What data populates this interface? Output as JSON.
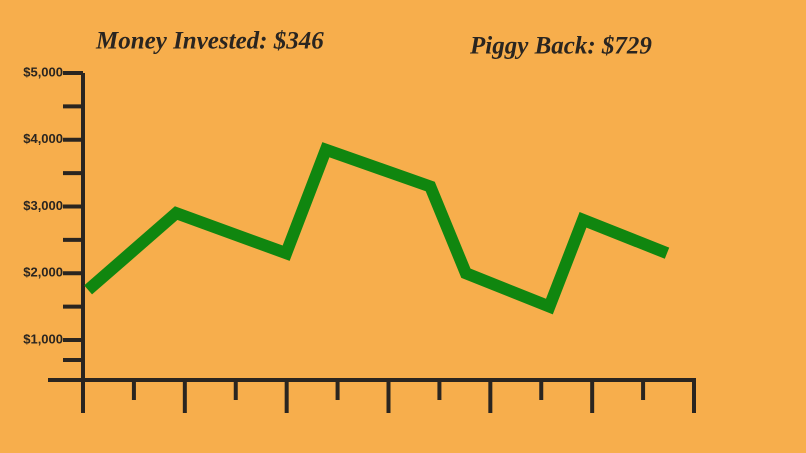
{
  "chart_data": {
    "type": "line",
    "annotations": [
      "Money Invested: $346",
      "Piggy Back: $729"
    ],
    "x": [
      0.1,
      1.83,
      3.99,
      4.77,
      6.82,
      7.52,
      9.16,
      9.82,
      11.47
    ],
    "series": [
      {
        "color": "#10860f",
        "values": [
          1750,
          2900,
          2300,
          3850,
          3300,
          2000,
          1500,
          2800,
          2300
        ]
      }
    ],
    "xlim": [
      0,
      12
    ],
    "ylim": [
      400,
      5000
    ],
    "yticks": [
      {
        "value": 1000,
        "label": "$1,000"
      },
      {
        "value": 2000,
        "label": "$2,000"
      },
      {
        "value": 3000,
        "label": "$3,000"
      },
      {
        "value": 4000,
        "label": "$4,000"
      },
      {
        "value": 5000,
        "label": "$5,000"
      }
    ],
    "grid": false
  }
}
